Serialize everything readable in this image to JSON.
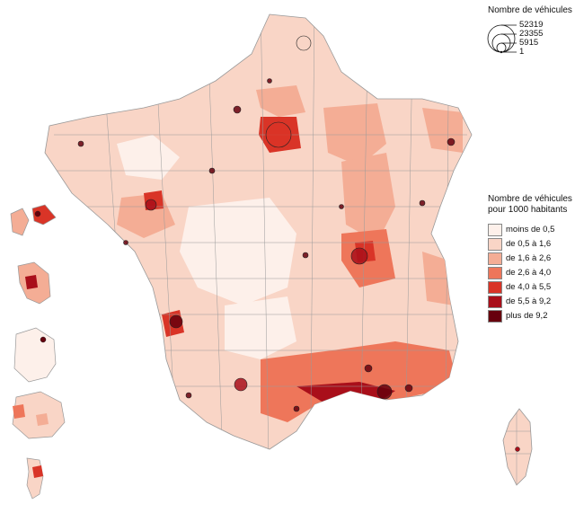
{
  "legend_circles": {
    "title": "Nombre de véhicules",
    "values": [
      "52319",
      "23355",
      "5915",
      "1"
    ]
  },
  "legend_classes": {
    "title_line1": "Nombre de véhicules",
    "title_line2": "pour 1000 habitants",
    "classes": [
      {
        "label": "moins de 0,5",
        "color": "#fdf0ea"
      },
      {
        "label": "de 0,5 à 1,6",
        "color": "#f9d5c6"
      },
      {
        "label": "de 1,6 à 2,6",
        "color": "#f4ad95"
      },
      {
        "label": "de 2,6 à 4,0",
        "color": "#ee765a"
      },
      {
        "label": "de 4,0 à 5,5",
        "color": "#d93427"
      },
      {
        "label": "de 5,5 à 9,2",
        "color": "#a90f1a"
      },
      {
        "label": "plus de 9,2",
        "color": "#67000d"
      }
    ]
  }
}
